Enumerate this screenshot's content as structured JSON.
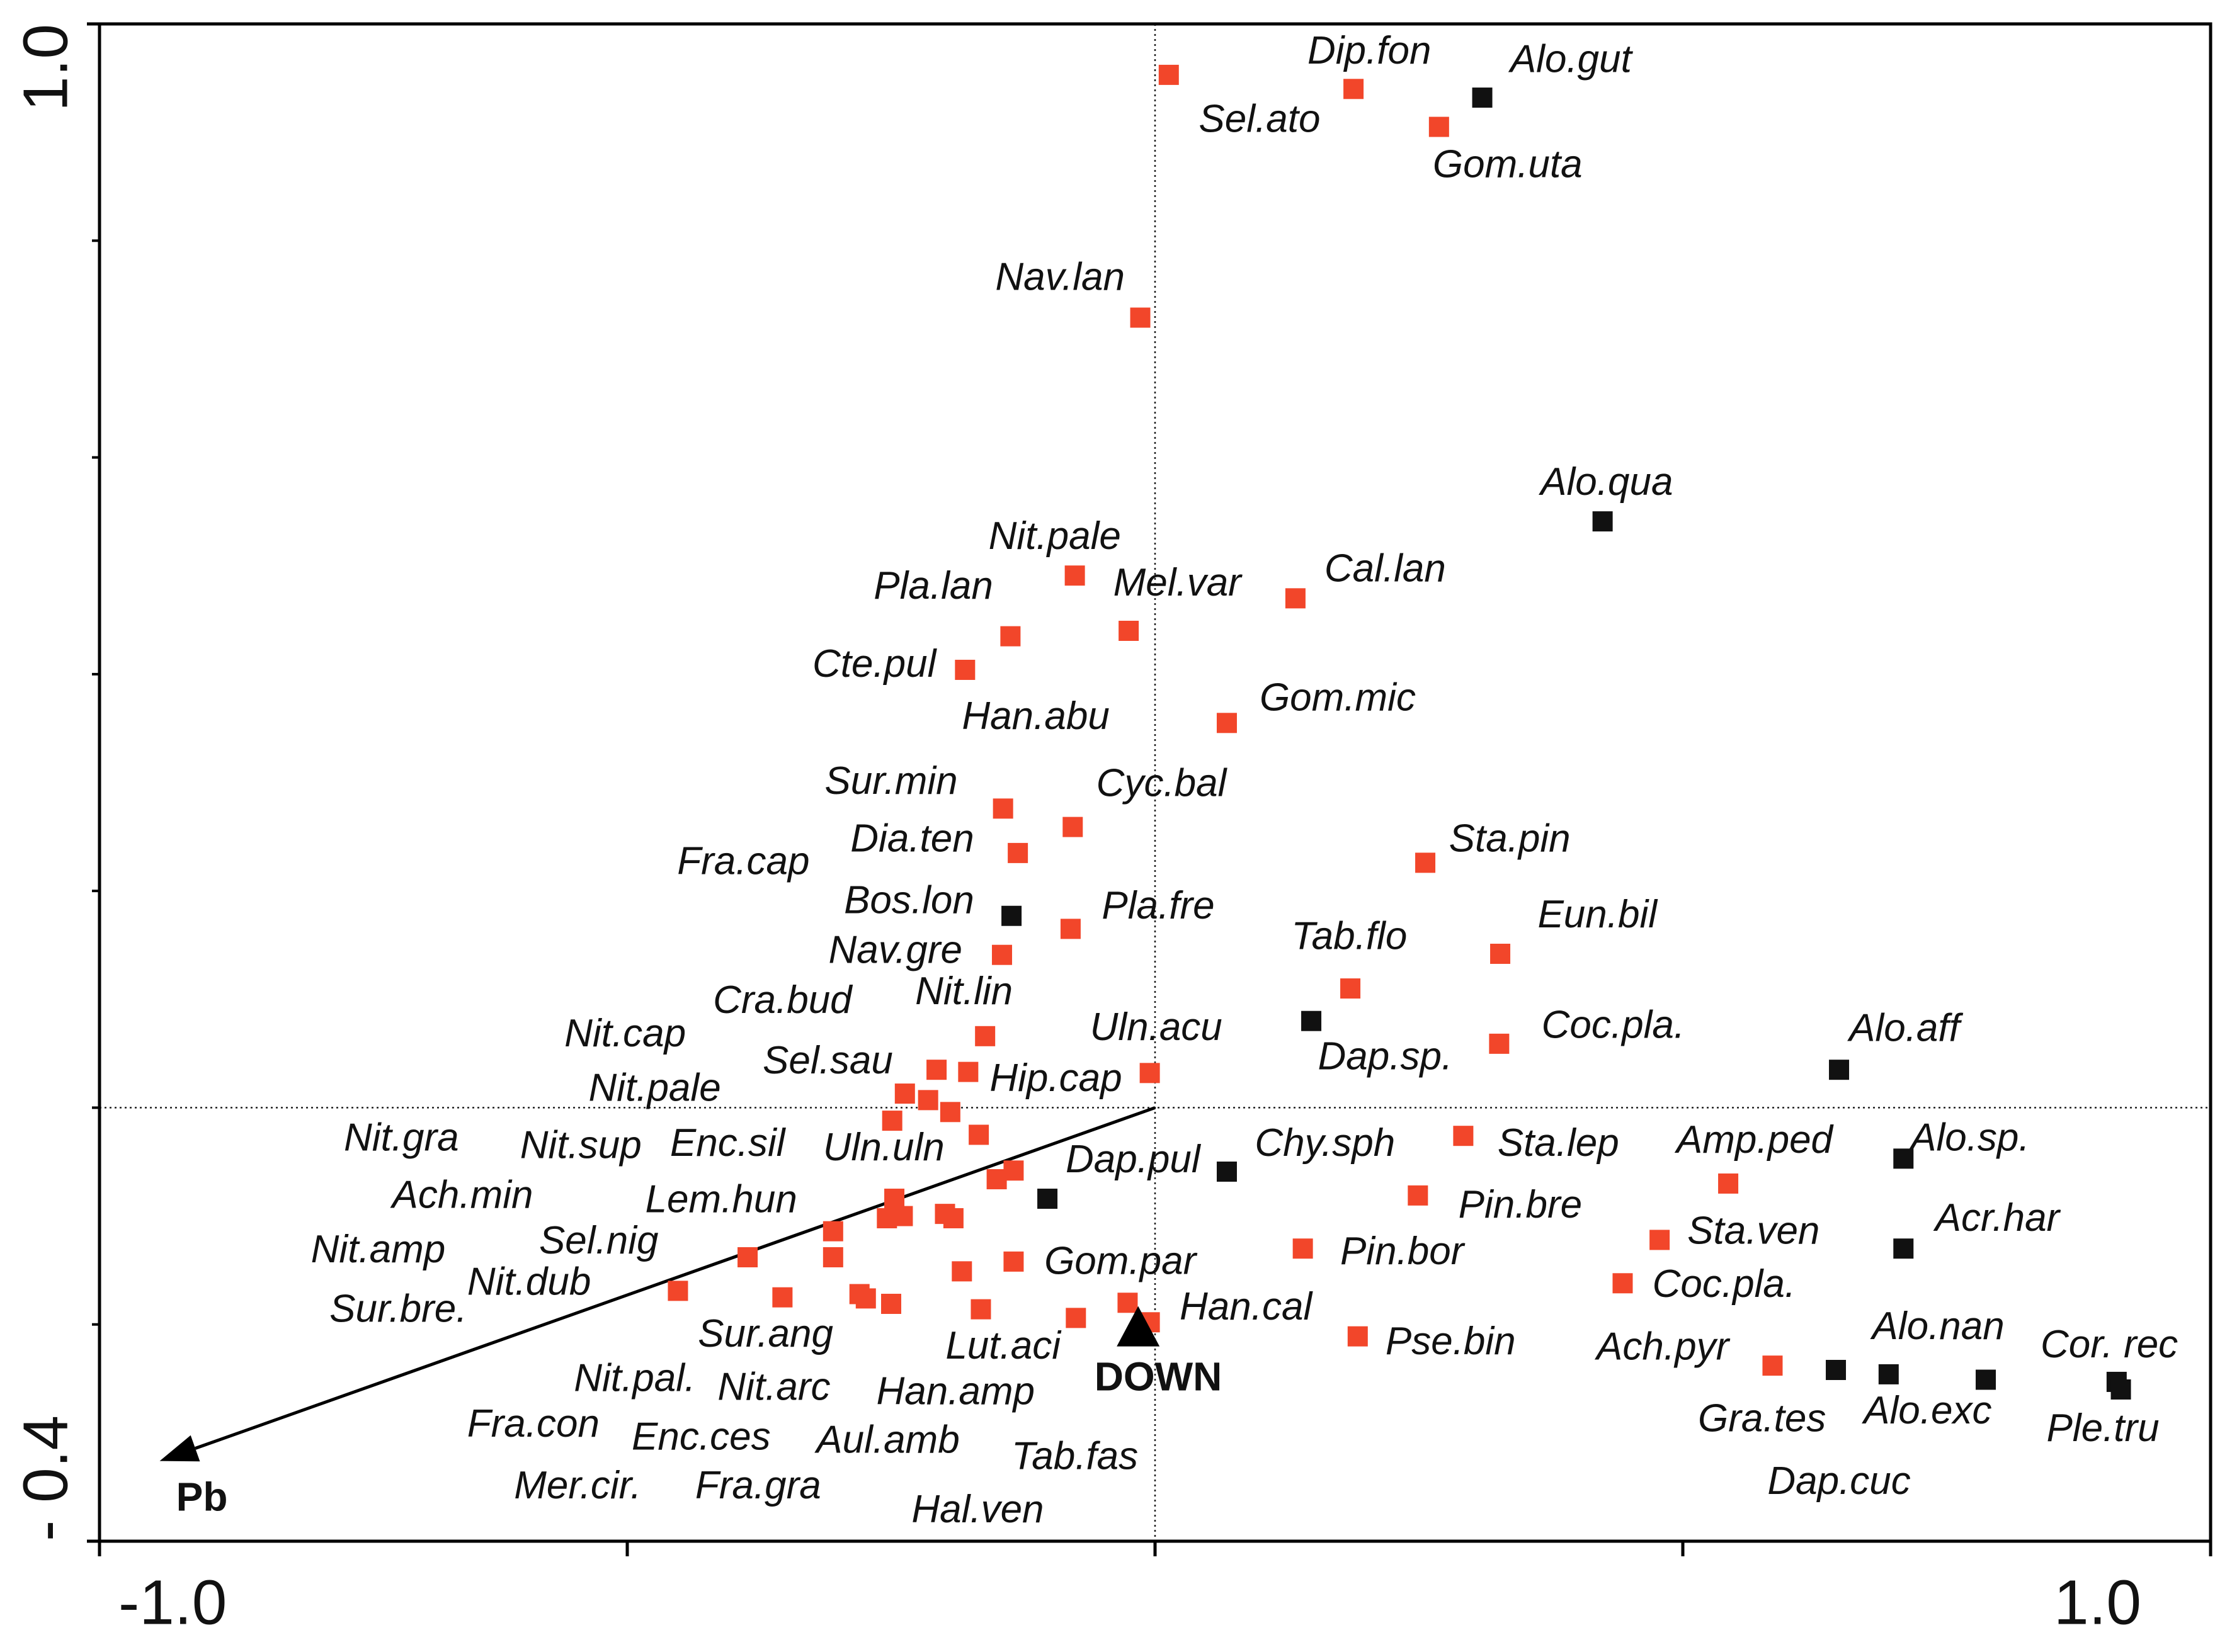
{
  "chart_data": {
    "type": "scatter",
    "xlim": [
      -1.0,
      1.0
    ],
    "ylim": [
      -0.4,
      1.0
    ],
    "xticks": [
      {
        "value": -1.0,
        "label": "-1.0"
      },
      {
        "value": 1.0,
        "label": "1.0"
      }
    ],
    "yticks": [
      {
        "value": 1.0,
        "label": "1.0"
      },
      {
        "value": -0.4,
        "label": "- 0.4"
      }
    ],
    "xminor_ticks": [
      -0.5,
      0,
      0.5
    ],
    "yminor_ticks": [
      0.8,
      0.6,
      0.4,
      0.2,
      0,
      -0.2
    ],
    "zero_lines": true,
    "series": [
      {
        "color": "#f2462a",
        "x": [
          0.013,
          0.188,
          0.269,
          -0.014,
          -0.076,
          0.133,
          -0.137,
          -0.025,
          -0.18,
          0.068,
          -0.144,
          -0.078,
          -0.13,
          0.256,
          -0.08,
          -0.145,
          0.327,
          0.185,
          -0.161,
          0.326,
          -0.207,
          -0.177,
          -0.005,
          -0.237,
          -0.215,
          -0.194,
          -0.249,
          -0.167,
          0.292,
          -0.134,
          -0.15,
          0.543,
          0.249,
          -0.247,
          -0.305,
          -0.254,
          -0.239,
          -0.199,
          -0.191,
          0.478,
          0.14,
          -0.386,
          -0.305,
          -0.134,
          -0.183,
          0.443,
          -0.452,
          -0.353,
          -0.28,
          -0.274,
          -0.25,
          -0.165,
          -0.075,
          -0.026,
          -0.005,
          0.192,
          0.585
        ],
        "values": [
          0.953,
          0.94,
          0.905,
          0.729,
          0.491,
          0.47,
          0.435,
          0.44,
          0.404,
          0.355,
          0.276,
          0.259,
          0.235,
          0.226,
          0.165,
          0.141,
          0.142,
          0.11,
          0.066,
          0.059,
          0.035,
          0.033,
          0.032,
          0.013,
          0.007,
          -0.004,
          -0.012,
          -0.025,
          -0.026,
          -0.058,
          -0.066,
          -0.07,
          -0.081,
          -0.084,
          -0.114,
          -0.102,
          -0.1,
          -0.098,
          -0.102,
          -0.122,
          -0.13,
          -0.138,
          -0.138,
          -0.142,
          -0.151,
          -0.162,
          -0.169,
          -0.175,
          -0.172,
          -0.176,
          -0.181,
          -0.186,
          -0.194,
          -0.18,
          -0.198,
          -0.211,
          -0.238
        ]
      },
      {
        "color": "#111111",
        "x": [
          0.31,
          0.424,
          -0.136,
          0.148,
          0.648,
          0.709,
          -0.102,
          0.068,
          0.709,
          0.645,
          0.695,
          0.787,
          0.911,
          0.915
        ],
        "values": [
          0.932,
          0.541,
          0.177,
          0.08,
          0.035,
          -0.047,
          -0.084,
          -0.059,
          -0.13,
          -0.242,
          -0.246,
          -0.251,
          -0.253,
          -0.26
        ]
      }
    ],
    "labels": [
      {
        "text": "Dip.fon",
        "x": 0.203,
        "y": 0.973
      },
      {
        "text": "Alo.gut",
        "x": 0.394,
        "y": 0.965
      },
      {
        "text": "Sel.ato",
        "x": 0.099,
        "y": 0.91
      },
      {
        "text": "Gom.uta",
        "x": 0.334,
        "y": 0.868
      },
      {
        "text": "Nav.lan",
        "x": -0.09,
        "y": 0.764
      },
      {
        "text": "Alo.qua",
        "x": 0.428,
        "y": 0.575
      },
      {
        "text": "Nit.pale",
        "x": -0.095,
        "y": 0.525
      },
      {
        "text": "Cal.lan",
        "x": 0.218,
        "y": 0.495
      },
      {
        "text": "Pla.lan",
        "x": -0.21,
        "y": 0.479
      },
      {
        "text": "Mel.var",
        "x": 0.021,
        "y": 0.482
      },
      {
        "text": "Cte.pul",
        "x": -0.266,
        "y": 0.407
      },
      {
        "text": "Han.abu",
        "x": -0.113,
        "y": 0.359
      },
      {
        "text": "Gom.mic",
        "x": 0.173,
        "y": 0.376
      },
      {
        "text": "Sur.min",
        "x": -0.25,
        "y": 0.299
      },
      {
        "text": "Cyc.bal",
        "x": 0.006,
        "y": 0.297
      },
      {
        "text": "Dia.ten",
        "x": -0.23,
        "y": 0.246
      },
      {
        "text": "Fra.cap",
        "x": -0.39,
        "y": 0.225
      },
      {
        "text": "Sta.pin",
        "x": 0.336,
        "y": 0.246
      },
      {
        "text": "Bos.lon",
        "x": -0.233,
        "y": 0.189
      },
      {
        "text": "Pla.fre",
        "x": 0.003,
        "y": 0.184
      },
      {
        "text": "Eun.bil",
        "x": 0.419,
        "y": 0.176
      },
      {
        "text": "Tab.flo",
        "x": 0.184,
        "y": 0.156
      },
      {
        "text": "Nav.gre",
        "x": -0.246,
        "y": 0.143
      },
      {
        "text": "Nit.lin",
        "x": -0.181,
        "y": 0.105
      },
      {
        "text": "Cra.bud",
        "x": -0.353,
        "y": 0.097
      },
      {
        "text": "Uln.acu",
        "x": 0.001,
        "y": 0.072
      },
      {
        "text": "Coc.pla.",
        "x": 0.434,
        "y": 0.074
      },
      {
        "text": "Alo.aff",
        "x": 0.71,
        "y": 0.071
      },
      {
        "text": "Nit.cap",
        "x": -0.502,
        "y": 0.066
      },
      {
        "text": "Dap.sp.",
        "x": 0.218,
        "y": 0.045
      },
      {
        "text": "Sel.sau",
        "x": -0.31,
        "y": 0.041
      },
      {
        "text": "Hip.cap",
        "x": -0.094,
        "y": 0.025
      },
      {
        "text": "Nit.pale",
        "x": -0.474,
        "y": 0.016
      },
      {
        "text": "Nit.gra",
        "x": -0.714,
        "y": -0.03
      },
      {
        "text": "Nit.sup",
        "x": -0.544,
        "y": -0.037
      },
      {
        "text": "Enc.sil",
        "x": -0.405,
        "y": -0.035
      },
      {
        "text": "Uln.uln",
        "x": -0.257,
        "y": -0.039
      },
      {
        "text": "Dap.pul",
        "x": -0.021,
        "y": -0.05
      },
      {
        "text": "Chy.sph",
        "x": 0.161,
        "y": -0.035
      },
      {
        "text": "Sta.lep",
        "x": 0.382,
        "y": -0.035
      },
      {
        "text": "Amp.ped",
        "x": 0.568,
        "y": -0.032
      },
      {
        "text": "Alo.sp.",
        "x": 0.772,
        "y": -0.03
      },
      {
        "text": "Ach.min",
        "x": -0.656,
        "y": -0.083
      },
      {
        "text": "Lem.hun",
        "x": -0.411,
        "y": -0.087
      },
      {
        "text": "Pin.bre",
        "x": 0.346,
        "y": -0.092
      },
      {
        "text": "Sta.ven",
        "x": 0.567,
        "y": -0.116
      },
      {
        "text": "Acr.har",
        "x": 0.798,
        "y": -0.104
      },
      {
        "text": "Nit.amp",
        "x": -0.736,
        "y": -0.133
      },
      {
        "text": "Sel.nig",
        "x": -0.527,
        "y": -0.125
      },
      {
        "text": "Gom.par",
        "x": -0.033,
        "y": -0.144
      },
      {
        "text": "Pin.bor",
        "x": 0.234,
        "y": -0.135
      },
      {
        "text": "Nit.dub",
        "x": -0.593,
        "y": -0.163
      },
      {
        "text": "Coc.pla.",
        "x": 0.539,
        "y": -0.165
      },
      {
        "text": "Sur.bre.",
        "x": -0.717,
        "y": -0.188
      },
      {
        "text": "Han.cal",
        "x": 0.086,
        "y": -0.186
      },
      {
        "text": "Sur.ang",
        "x": -0.369,
        "y": -0.211
      },
      {
        "text": "Lut.aci",
        "x": -0.144,
        "y": -0.222
      },
      {
        "text": "Pse.bin",
        "x": 0.28,
        "y": -0.218
      },
      {
        "text": "Ach.pyr",
        "x": 0.481,
        "y": -0.223
      },
      {
        "text": "Alo.nan",
        "x": 0.742,
        "y": -0.204
      },
      {
        "text": "Cor. rec",
        "x": 0.904,
        "y": -0.221
      },
      {
        "text": "Nit.pal.",
        "x": -0.493,
        "y": -0.252
      },
      {
        "text": "Nit.arc",
        "x": -0.361,
        "y": -0.26
      },
      {
        "text": "Han.amp",
        "x": -0.189,
        "y": -0.264
      },
      {
        "text": "Gra.tes",
        "x": 0.575,
        "y": -0.289
      },
      {
        "text": "Alo.exc",
        "x": 0.732,
        "y": -0.282
      },
      {
        "text": "Ple.tru",
        "x": 0.898,
        "y": -0.298
      },
      {
        "text": "Fra.con",
        "x": -0.589,
        "y": -0.294
      },
      {
        "text": "Enc.ces",
        "x": -0.43,
        "y": -0.306
      },
      {
        "text": "Aul.amb",
        "x": -0.253,
        "y": -0.309
      },
      {
        "text": "Tab.fas",
        "x": -0.076,
        "y": -0.324
      },
      {
        "text": "Mer.cir.",
        "x": -0.547,
        "y": -0.351
      },
      {
        "text": "Fra.gra",
        "x": -0.376,
        "y": -0.351
      },
      {
        "text": "Hal.ven",
        "x": -0.168,
        "y": -0.373
      },
      {
        "text": "Dap.cuc",
        "x": 0.648,
        "y": -0.347
      }
    ],
    "arrows": [
      {
        "label": "Pb",
        "x": -0.943,
        "y": -0.326,
        "label_x": -0.903,
        "label_y": -0.362
      }
    ],
    "centroids": [
      {
        "label": "DOWN",
        "x": -0.016,
        "y": -0.204,
        "label_x": 0.003,
        "label_y": -0.251
      }
    ]
  }
}
